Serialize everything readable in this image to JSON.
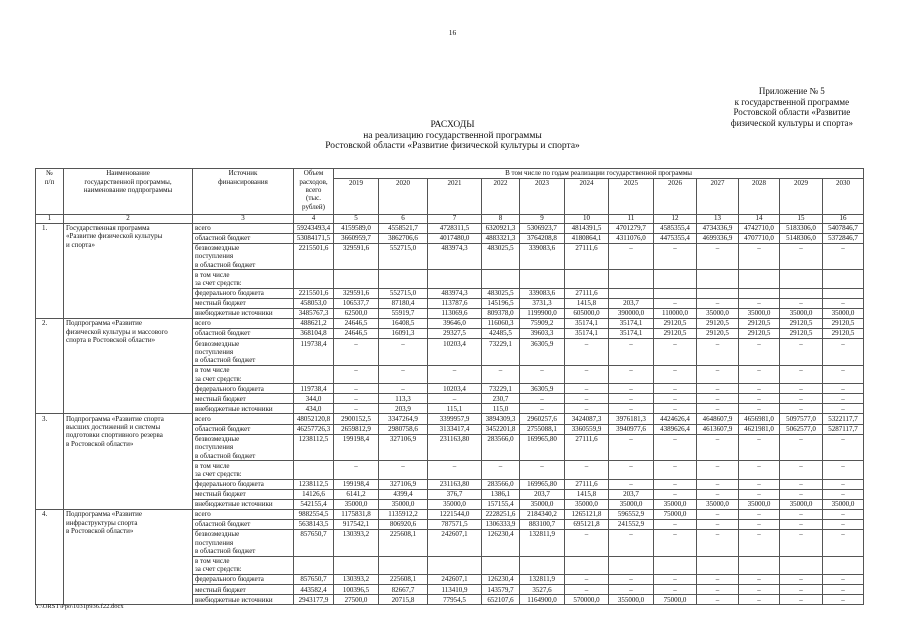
{
  "page_number": "16",
  "appendix": "Приложение № 5\nк государственной программе\nРостовской области «Развитие\nфизической культуры и спорта»",
  "title": {
    "line1": "РАСХОДЫ",
    "line2": "на реализацию государственной программы",
    "line3": "Ростовской области «Развитие физической культуры и спорта»"
  },
  "table": {
    "headers": {
      "num": "№\nп/п",
      "name": "Наименование\nгосударственной программы,\nнаименование подпрограммы",
      "source": "Источник\nфинансирования",
      "total": "Объем\nрасходов,\nвсего\n(тыс.\nрублей)",
      "years_group": "В том числе по годам реализации государственной программы",
      "years": [
        "2019",
        "2020",
        "2021",
        "2022",
        "2023",
        "2024",
        "2025",
        "2026",
        "2027",
        "2028",
        "2029",
        "2030"
      ],
      "column_numbers": [
        "1",
        "2",
        "3",
        "4",
        "5",
        "6",
        "7",
        "8",
        "9",
        "10",
        "11",
        "12",
        "13",
        "14",
        "15",
        "16"
      ]
    },
    "sources": [
      "всего",
      "областной бюджет",
      "безвозмездные\nпоступления\nв областной бюджет",
      "в том числе\nза счет средств:",
      "федерального бюджета",
      "местный бюджет",
      "внебюджетные источники"
    ],
    "sections": [
      {
        "num": "1.",
        "name": "Государственная программа\n«Развитие физической культуры\nи спорта»",
        "rows": [
          [
            "59243493,4",
            "4159589,0",
            "4558521,7",
            "4728311,5",
            "6320921,3",
            "5306923,7",
            "4814391,5",
            "4701279,7",
            "4585355,4",
            "4734336,9",
            "4742710,0",
            "5183306,0",
            "5407846,7"
          ],
          [
            "53084171,5",
            "3660959,7",
            "3862706,6",
            "4017480,0",
            "4883321,3",
            "3764208,8",
            "4180864,1",
            "4311076,0",
            "4475355,4",
            "4699336,9",
            "4707710,0",
            "5148306,0",
            "5372846,7"
          ],
          [
            "2215501,6",
            "329591,6",
            "552715,0",
            "483974,3",
            "483025,5",
            "339083,6",
            "27111,6",
            "–",
            "–",
            "–",
            "–",
            "–",
            "–"
          ],
          [
            "",
            "",
            "",
            "",
            "",
            "",
            "",
            "",
            "",
            "",
            "",
            "",
            ""
          ],
          [
            "2215501,6",
            "329591,6",
            "552715,0",
            "483974,3",
            "483025,5",
            "339083,6",
            "27111,6",
            "",
            "",
            "",
            "",
            "",
            ""
          ],
          [
            "458053,0",
            "106537,7",
            "87180,4",
            "113787,6",
            "145196,5",
            "3731,3",
            "1415,8",
            "203,7",
            "–",
            "–",
            "–",
            "–",
            "–"
          ],
          [
            "3485767,3",
            "62500,0",
            "55919,7",
            "113069,6",
            "809378,0",
            "1199900,0",
            "605000,0",
            "390000,0",
            "110000,0",
            "35000,0",
            "35000,0",
            "35000,0",
            "35000,0"
          ]
        ]
      },
      {
        "num": "2.",
        "name": "Подпрограмма «Развитие\nфизической культуры и массового\nспорта в Ростовской области»",
        "rows": [
          [
            "488621,2",
            "24646,5",
            "16408,5",
            "39646,0",
            "116060,3",
            "75909,2",
            "35174,1",
            "35174,1",
            "29120,5",
            "29120,5",
            "29120,5",
            "29120,5",
            "29120,5"
          ],
          [
            "368104,8",
            "24646,5",
            "16091,3",
            "29327,5",
            "42485,5",
            "39603,3",
            "35174,1",
            "35174,1",
            "29120,5",
            "29120,5",
            "29120,5",
            "29120,5",
            "29120,5"
          ],
          [
            "119738,4",
            "–",
            "–",
            "10203,4",
            "73229,1",
            "36305,9",
            "–",
            "–",
            "–",
            "–",
            "–",
            "–",
            "–"
          ],
          [
            "",
            "–",
            "–",
            "–",
            "–",
            "–",
            "–",
            "–",
            "–",
            "–",
            "–",
            "–",
            "–"
          ],
          [
            "119738,4",
            "–",
            "–",
            "10203,4",
            "73229,1",
            "36305,9",
            "–",
            "–",
            "–",
            "–",
            "–",
            "–",
            "–"
          ],
          [
            "344,0",
            "–",
            "113,3",
            "–",
            "230,7",
            "–",
            "–",
            "–",
            "–",
            "–",
            "–",
            "–",
            "–"
          ],
          [
            "434,0",
            "–",
            "203,9",
            "115,1",
            "115,0",
            "–",
            "–",
            "–",
            "–",
            "–",
            "–",
            "–",
            "–"
          ]
        ]
      },
      {
        "num": "3.",
        "name": "Подпрограмма «Развитие спорта\nвысших достижений и системы\nподготовки спортивного резерва\nв Ростовской области»",
        "rows": [
          [
            "48052120,8",
            "2900152,5",
            "3347264,9",
            "3399957,9",
            "3894309,3",
            "2960257,6",
            "3424087,3",
            "3976181,3",
            "4424626,4",
            "4648607,9",
            "4656981,0",
            "5097577,0",
            "5322117,7"
          ],
          [
            "46257726,3",
            "2659812,9",
            "2980758,6",
            "3133417,4",
            "3452201,8",
            "2755088,1",
            "3360559,9",
            "3940977,6",
            "4389626,4",
            "4613607,9",
            "4621981,0",
            "5062577,0",
            "5287117,7"
          ],
          [
            "1238112,5",
            "199198,4",
            "327106,9",
            "231163,80",
            "283566,0",
            "169965,80",
            "27111,6",
            "–",
            "–",
            "–",
            "–",
            "–",
            "–"
          ],
          [
            "",
            "–",
            "–",
            "–",
            "–",
            "–",
            "–",
            "–",
            "–",
            "–",
            "–",
            "–",
            "–"
          ],
          [
            "1238112,5",
            "199198,4",
            "327106,9",
            "231163,80",
            "283566,0",
            "169965,80",
            "27111,6",
            "–",
            "–",
            "–",
            "–",
            "–",
            "–"
          ],
          [
            "14126,6",
            "6141,2",
            "4399,4",
            "376,7",
            "1386,1",
            "203,7",
            "1415,8",
            "203,7",
            "–",
            "–",
            "–",
            "–",
            "–"
          ],
          [
            "542155,4",
            "35000,0",
            "35000,0",
            "35000,0",
            "157155,4",
            "35000,0",
            "35000,0",
            "35000,0",
            "35000,0",
            "35000,0",
            "35000,0",
            "35000,0",
            "35000,0"
          ]
        ]
      },
      {
        "num": "4.",
        "name": "Подпрограмма «Развитие\nинфраструктуры спорта\nв Ростовской области»",
        "rows": [
          [
            "9882554,5",
            "1175831,8",
            "1135912,2",
            "1221544,0",
            "2228251,6",
            "2184340,2",
            "1265121,8",
            "596552,9",
            "75000,0",
            "–",
            "–",
            "–",
            "–"
          ],
          [
            "5638143,5",
            "917542,1",
            "806920,6",
            "787571,5",
            "1306333,9",
            "883100,7",
            "695121,8",
            "241552,9",
            "–",
            "–",
            "–",
            "–",
            "–"
          ],
          [
            "857650,7",
            "130393,2",
            "225608,1",
            "242607,1",
            "126230,4",
            "132811,9",
            "–",
            "–",
            "–",
            "–",
            "–",
            "–",
            "–"
          ],
          [
            "",
            "",
            "",
            "",
            "",
            "",
            "",
            "",
            "",
            "",
            "",
            "",
            ""
          ],
          [
            "857650,7",
            "130393,2",
            "225608,1",
            "242607,1",
            "126230,4",
            "132811,9",
            "–",
            "–",
            "–",
            "–",
            "–",
            "–",
            "–"
          ],
          [
            "443582,4",
            "100396,5",
            "82667,7",
            "113410,9",
            "143579,7",
            "3527,6",
            "–",
            "–",
            "–",
            "–",
            "–",
            "–",
            "–"
          ],
          [
            "2943177,9",
            "27500,0",
            "20715,8",
            "77954,5",
            "652107,6",
            "1164900,0",
            "570000,0",
            "355000,0",
            "75000,0",
            "–",
            "–",
            "–",
            "–"
          ]
        ]
      }
    ]
  },
  "footer_path": "Y:\\ORST\\Ppo\\1031p936.f22.docx"
}
